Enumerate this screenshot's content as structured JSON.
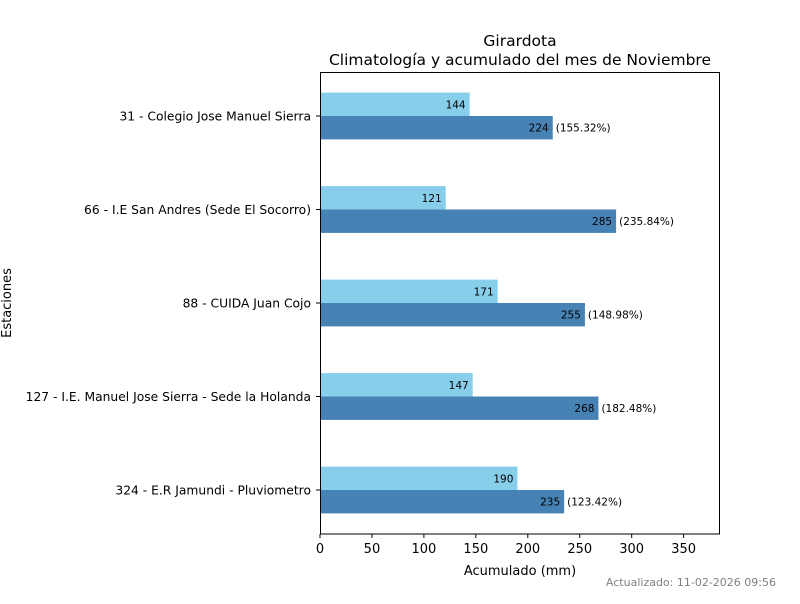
{
  "chart_data": {
    "type": "bar",
    "orientation": "horizontal",
    "title": "Girardota",
    "subtitle": "Climatología y acumulado del mes de Noviembre",
    "xlabel": "Acumulado (mm)",
    "ylabel": "Estaciones",
    "xlim": [
      0,
      385
    ],
    "xticks": [
      0,
      50,
      100,
      150,
      200,
      250,
      300,
      350
    ],
    "grid": false,
    "categories": [
      "31 - Colegio Jose Manuel Sierra",
      "66 - I.E San Andres (Sede El Socorro)",
      "88 - CUIDA Juan Cojo",
      "127 - I.E. Manuel Jose Sierra - Sede la Holanda",
      "324 - E.R Jamundi - Pluviometro"
    ],
    "series": [
      {
        "name": "Climatología",
        "color": "#87ceeb",
        "values": [
          144,
          121,
          171,
          147,
          190
        ]
      },
      {
        "name": "Acumulado",
        "color": "#4682b4",
        "values": [
          224,
          285,
          255,
          268,
          235
        ]
      }
    ],
    "percent_labels": [
      "(155.32%)",
      "(235.84%)",
      "(148.98%)",
      "(182.48%)",
      "(123.42%)"
    ],
    "footer": "Actualizado: 11-02-2026 09:56"
  }
}
